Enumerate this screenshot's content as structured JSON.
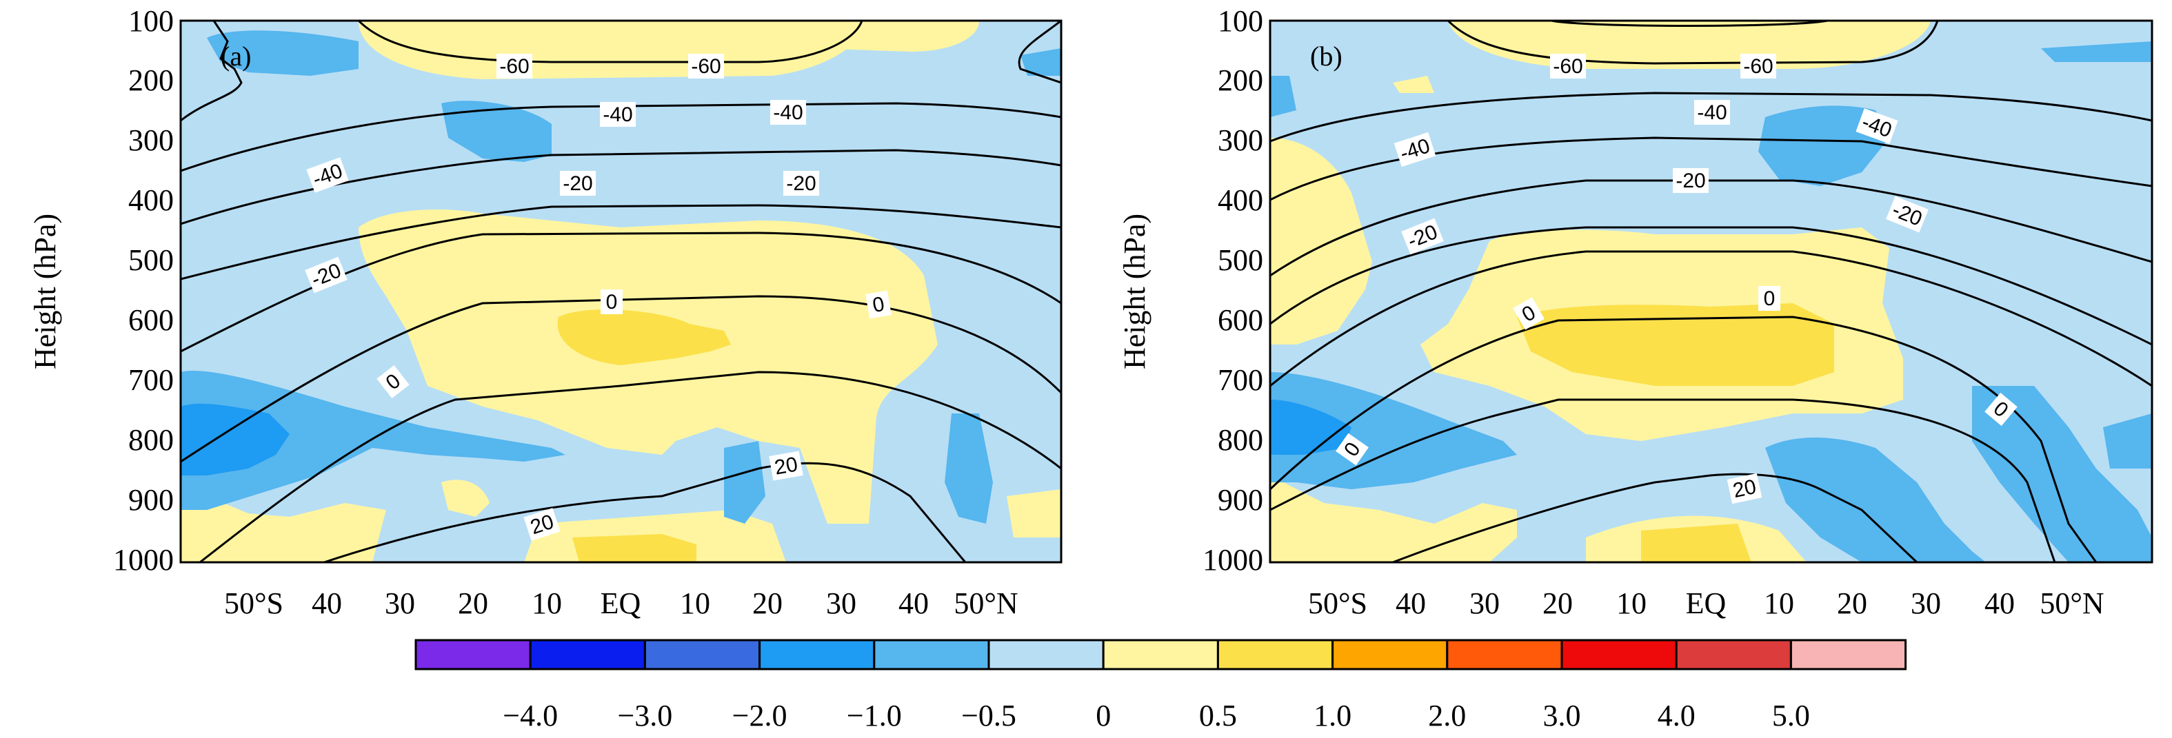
{
  "chart_data": [
    {
      "type": "heatmap",
      "panel_label": "(a)",
      "ylabel": "Height (hPa)",
      "y_ticks": [
        "100",
        "200",
        "300",
        "400",
        "500",
        "600",
        "700",
        "800",
        "900",
        "1000"
      ],
      "y_range": [
        1000,
        100
      ],
      "x_ticks": [
        "50°S",
        "40",
        "30",
        "20",
        "10",
        "EQ",
        "10",
        "20",
        "30",
        "40",
        "50°N"
      ],
      "x_range_lat": [
        -60,
        60
      ],
      "overlay": "contours",
      "contour_labels": [
        "-60",
        "-60",
        "-40",
        "-40",
        "-40",
        "-20",
        "-20",
        "-20",
        "0",
        "0",
        "0",
        "20",
        "20"
      ]
    },
    {
      "type": "heatmap",
      "panel_label": "(b)",
      "ylabel": "Height (hPa)",
      "y_ticks": [
        "100",
        "200",
        "300",
        "400",
        "500",
        "600",
        "700",
        "800",
        "900",
        "1000"
      ],
      "y_range": [
        1000,
        100
      ],
      "x_ticks": [
        "50°S",
        "40",
        "30",
        "20",
        "10",
        "EQ",
        "10",
        "20",
        "30",
        "40",
        "50°N"
      ],
      "x_range_lat": [
        -60,
        60
      ],
      "overlay": "contours",
      "contour_labels": [
        "-60",
        "-60",
        "-40",
        "-40",
        "-40",
        "-20",
        "-20",
        "-20",
        "0",
        "0",
        "0",
        "20"
      ]
    }
  ],
  "colorbar": {
    "colors": [
      "#7a2ae8",
      "#0a1ef0",
      "#3a6ae0",
      "#1e9bf2",
      "#56b6ee",
      "#b8def4",
      "#fff5a0",
      "#fbe04a",
      "#ffa500",
      "#ff5a0a",
      "#ee0a0a",
      "#dc3c3c",
      "#f8b4b4"
    ],
    "labels": [
      "−4.0",
      "−3.0",
      "−2.0",
      "−1.0",
      "−0.5",
      "0",
      "0.5",
      "1.0",
      "2.0",
      "3.0",
      "4.0",
      "5.0"
    ]
  }
}
